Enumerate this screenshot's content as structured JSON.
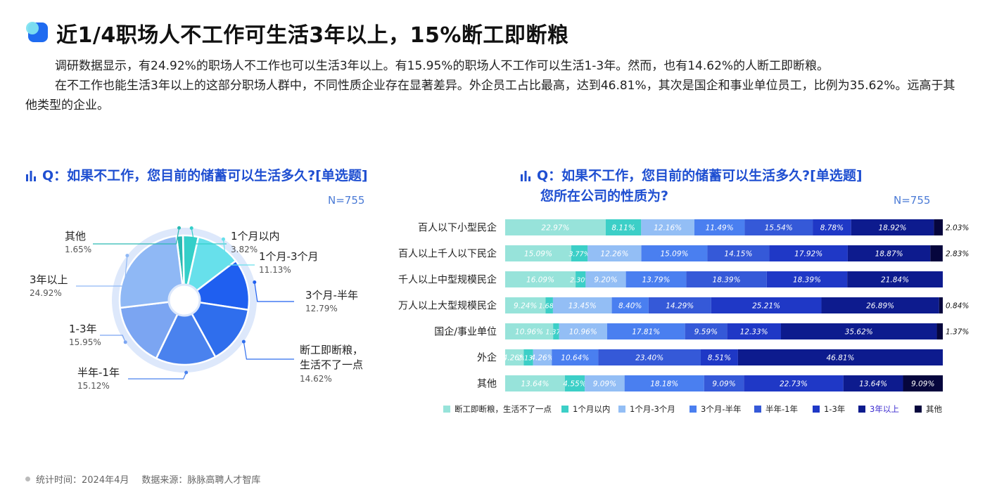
{
  "title": "近1/4职场人不工作可生活3年以上，15%断工即断粮",
  "intro": [
    "调研数据显示，有24.92%的职场人不工作也可以生活3年以上。有15.95%的职场人不工作可以生活1-3年。然而，也有14.62%的人断工即断粮。",
    "在不工作也能生活3年以上的这部分职场人群中，不同性质企业存在显著差异。外企员工占比最高，达到46.81%，其次是国企和事业单位员工，比例为35.62%。远高于其他类型的企业。"
  ],
  "left_chart": {
    "question": "Q：如果不工作，您目前的储蓄可以生活多久?[单选题]",
    "n": "N=755"
  },
  "right_chart": {
    "question_line1": "Q：如果不工作，您目前的储蓄可以生活多久?[单选题]",
    "question_line2": "您所在公司的性质为?",
    "n": "N=755"
  },
  "footer": {
    "time": "统计时间：2024年4月",
    "source": "数据来源：脉脉高聘人才智库"
  },
  "colors": {
    "title_blue": "#1f4fd1",
    "categories": [
      "#97e3da",
      "#3ccfc7",
      "#93bef5",
      "#4a7ff0",
      "#3559d8",
      "#1f38c6",
      "#0d1b8e",
      "#06063d"
    ]
  },
  "chart_data": [
    {
      "type": "pie",
      "style": "donut",
      "categories": [
        "其他",
        "1个月以内",
        "1个月-3个月",
        "3个月-半年",
        "断工即断粮，生活不了一点",
        "半年-1年",
        "1-3年",
        "3年以上"
      ],
      "values": [
        1.65,
        3.82,
        11.13,
        12.79,
        14.62,
        15.12,
        15.95,
        24.92
      ],
      "labels": [
        "1.65%",
        "3.82%",
        "11.13%",
        "12.79%",
        "14.62%",
        "15.12%",
        "15.95%",
        "24.92%"
      ],
      "colors": [
        "#2ab9b2",
        "#34cfc9",
        "#67e0eb",
        "#1f5ff0",
        "#2f6eed",
        "#4a82ee",
        "#7ba5f2",
        "#8fb8f5"
      ]
    },
    {
      "type": "bar",
      "orientation": "horizontal",
      "stacked": "percent",
      "categories": [
        "百人以下小型民企",
        "百人以上千人以下民企",
        "千人以上中型规模民企",
        "万人以上大型规模民企",
        "国企/事业单位",
        "外企",
        "其他"
      ],
      "series": [
        {
          "name": "断工即断粮，生活不了一点",
          "values": [
            22.97,
            15.09,
            16.09,
            9.24,
            10.96,
            4.26,
            13.64
          ],
          "labels": [
            "22.97%",
            "15.09%",
            "16.09%",
            "9.24%",
            "10.96%",
            "4.26%",
            "13.64%"
          ]
        },
        {
          "name": "1个月以内",
          "values": [
            8.11,
            3.77,
            2.3,
            1.68,
            1.37,
            2.13,
            4.55
          ],
          "labels": [
            "8.11%",
            "3.77%",
            "2.30%",
            "1.68%",
            "1.37%",
            "2.13%",
            "4.55%"
          ]
        },
        {
          "name": "1个月-3个月",
          "values": [
            12.16,
            12.26,
            9.2,
            13.45,
            10.96,
            4.26,
            9.09
          ],
          "labels": [
            "12.16%",
            "12.26%",
            "9.20%",
            "13.45%",
            "10.96%",
            "4.26%",
            "9.09%"
          ]
        },
        {
          "name": "3个月-半年",
          "values": [
            11.49,
            15.09,
            13.79,
            8.4,
            17.81,
            10.64,
            18.18
          ],
          "labels": [
            "11.49%",
            "15.09%",
            "13.79%",
            "8.40%",
            "17.81%",
            "10.64%",
            "18.18%"
          ]
        },
        {
          "name": "半年-1年",
          "values": [
            15.54,
            14.15,
            18.39,
            14.29,
            9.59,
            23.4,
            9.09
          ],
          "labels": [
            "15.54%",
            "14.15%",
            "18.39%",
            "14.29%",
            "9.59%",
            "23.40%",
            "9.09%"
          ]
        },
        {
          "name": "1-3年",
          "values": [
            8.78,
            17.92,
            18.39,
            25.21,
            12.33,
            8.51,
            22.73
          ],
          "labels": [
            "8.78%",
            "17.92%",
            "18.39%",
            "25.21%",
            "12.33%",
            "8.51%",
            "22.73%"
          ]
        },
        {
          "name": "3年以上",
          "values": [
            18.92,
            18.87,
            21.84,
            26.89,
            35.62,
            46.81,
            13.64
          ],
          "labels": [
            "18.92%",
            "18.87%",
            "21.84%",
            "26.89%",
            "35.62%",
            "46.81%",
            "13.64%"
          ]
        },
        {
          "name": "其他",
          "values": [
            2.03,
            2.83,
            0,
            0.84,
            1.37,
            0,
            9.09
          ],
          "labels": [
            "2.03%",
            "2.83%",
            "",
            "0.84%",
            "1.37%",
            "",
            "9.09%"
          ]
        }
      ],
      "legend_position": "bottom",
      "legend_highlight": "3年以上"
    }
  ]
}
